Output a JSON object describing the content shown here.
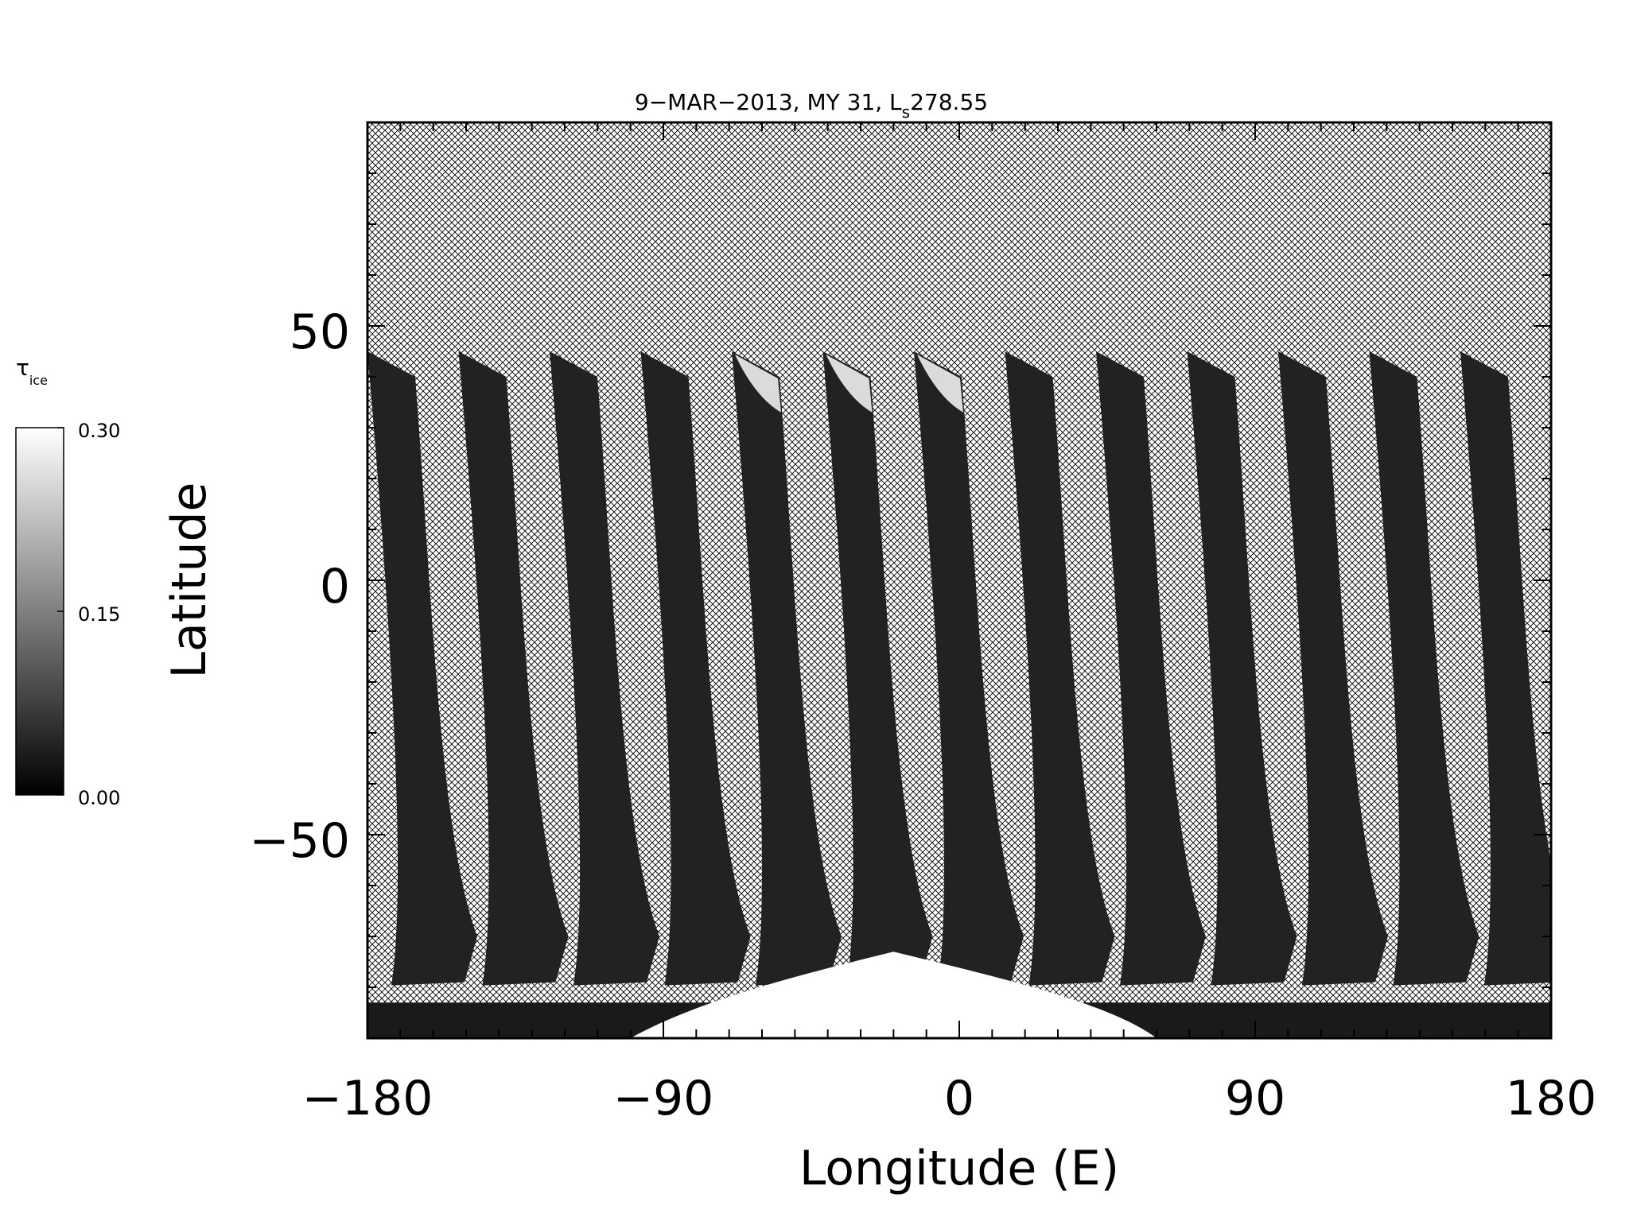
{
  "chart_data": {
    "type": "heatmap",
    "title": "9−MAR−2013, MY 31,  L",
    "title_subscript": "s",
    "title_value": "278.55",
    "xlabel": "Longitude (E)",
    "ylabel": "Latitude",
    "xlim": [
      -180,
      180
    ],
    "ylim": [
      -90,
      90
    ],
    "x_ticks": [
      "−180",
      "−90",
      "0",
      "90",
      "180"
    ],
    "x_tick_values": [
      -180,
      -90,
      0,
      90,
      180
    ],
    "y_ticks": [
      "50",
      "0",
      "−50"
    ],
    "y_tick_values": [
      50,
      0,
      -50
    ],
    "missing_data_fill": "crosshatch",
    "colorbar": {
      "label_symbol": "τ",
      "label_subscript": "ice",
      "min": 0.0,
      "max": 0.3,
      "ticks": [
        "0.30",
        "0.15",
        "0.00"
      ],
      "tick_values": [
        0.3,
        0.15,
        0.0
      ],
      "colormap": "grayscale (black = 0.00, white = 0.30)"
    },
    "swaths": {
      "count": 13,
      "start_longitude_north": -180,
      "spacing_deg": 27.7,
      "north_edge_lat": 45,
      "south_edge_lat": -79,
      "typical_value": 0.02,
      "bright_north_tips_near_lon": [
        -45,
        -20
      ]
    },
    "south_polar_high_value_region": {
      "lon_range": [
        -100,
        60
      ],
      "lat_range": [
        -90,
        -73
      ],
      "value": 0.3
    }
  }
}
